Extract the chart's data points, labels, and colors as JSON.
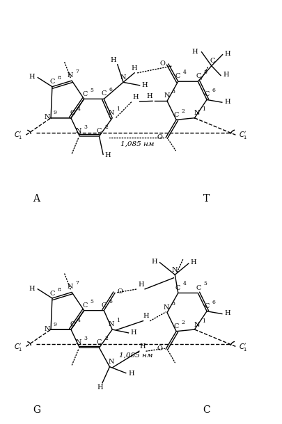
{
  "background": "#ffffff",
  "lw": 1.0,
  "fs": 7.0,
  "fs_sub": 5.5,
  "fs_label": 10,
  "AT": {
    "A_label": "A",
    "T_label": "T",
    "dist_label": "1,085 нм"
  },
  "GC": {
    "G_label": "G",
    "C_label": "C",
    "dist_label": "1,085 нм"
  }
}
